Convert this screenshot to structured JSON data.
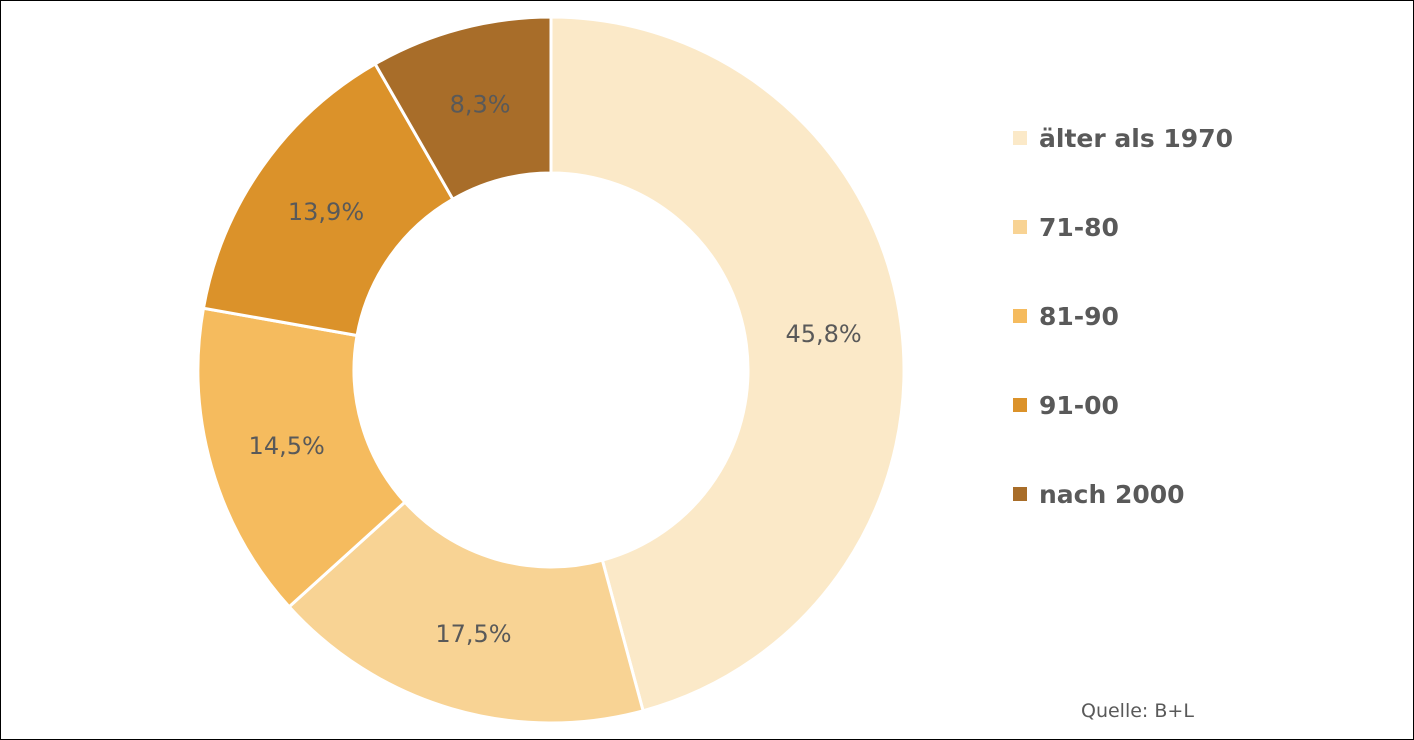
{
  "chart_data": {
    "type": "pie",
    "variant": "donut",
    "categories": [
      "älter als 1970",
      "71-80",
      "81-90",
      "91-00",
      "nach 2000"
    ],
    "values": [
      45.8,
      17.5,
      14.5,
      13.9,
      8.3
    ],
    "value_labels": [
      "45,8%",
      "17,5%",
      "14,5%",
      "13,9%",
      "8,3%"
    ],
    "colors": [
      "#FBE9C8",
      "#F8D394",
      "#F5BB5E",
      "#DB922A",
      "#A86D29"
    ],
    "legend_position": "right",
    "unit": "%"
  },
  "source": "Quelle: B+L"
}
